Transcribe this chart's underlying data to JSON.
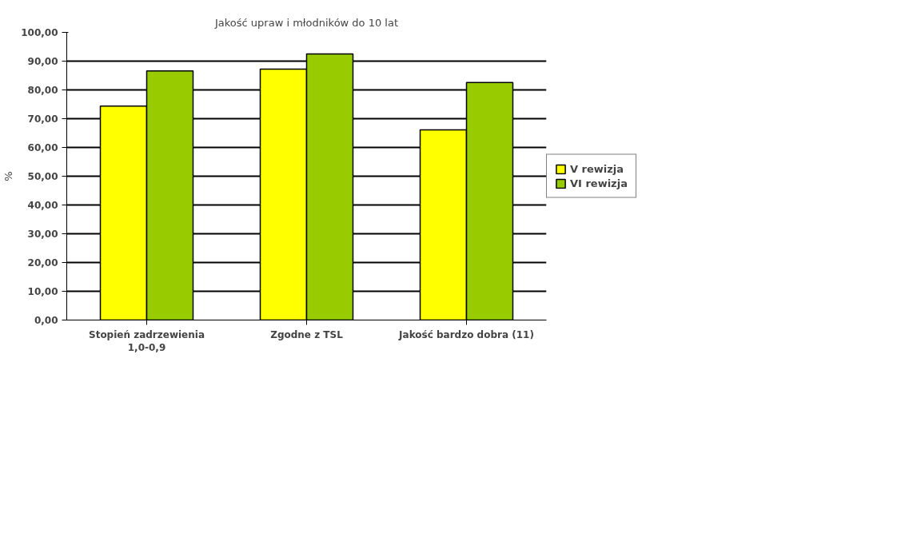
{
  "chart_data": {
    "type": "bar",
    "title": "Jakość upraw i młodników do 10 lat",
    "ylabel": "%",
    "categories": [
      "Stopień zadrzewienia 1,0-0,9",
      "Zgodne z TSL",
      "Jakość bardzo dobra (11)"
    ],
    "series": [
      {
        "name": "V rewizja",
        "color": "#ffff00",
        "values": [
          74.4,
          87.2,
          66.1
        ]
      },
      {
        "name": "VI rewizja",
        "color": "#99cc00",
        "values": [
          86.6,
          92.5,
          82.6
        ]
      }
    ],
    "ylim": [
      0,
      100
    ],
    "yticks": [
      {
        "value": 0,
        "label": "0,00"
      },
      {
        "value": 10,
        "label": "10,00"
      },
      {
        "value": 20,
        "label": "20,00"
      },
      {
        "value": 30,
        "label": "30,00"
      },
      {
        "value": 40,
        "label": "40,00"
      },
      {
        "value": 50,
        "label": "50,00"
      },
      {
        "value": 60,
        "label": "60,00"
      },
      {
        "value": 70,
        "label": "70,00"
      },
      {
        "value": 80,
        "label": "80,00"
      },
      {
        "value": 90,
        "label": "90,00"
      },
      {
        "value": 100,
        "label": "100,00"
      }
    ],
    "grid": "y",
    "legend": "right"
  }
}
